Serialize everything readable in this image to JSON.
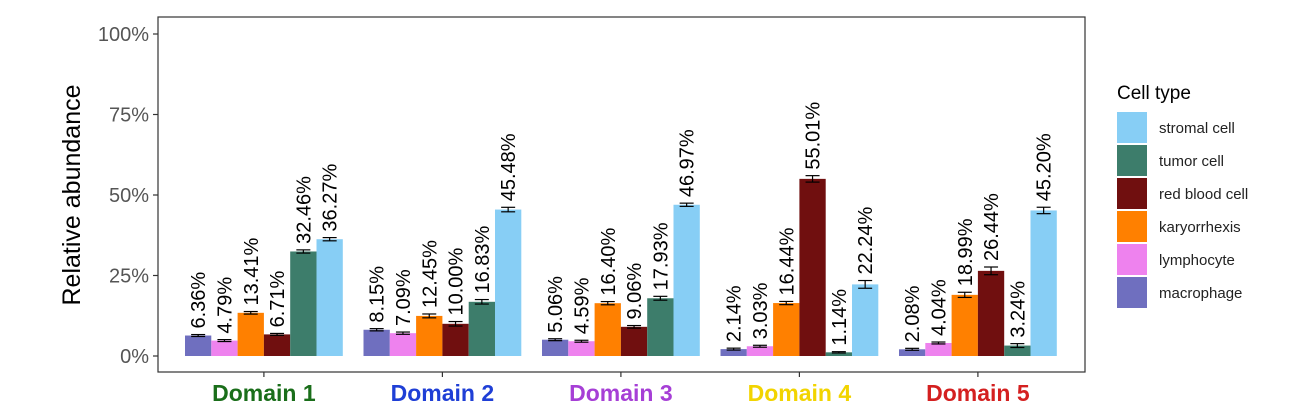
{
  "chart_data": {
    "type": "bar",
    "ylabel": "Relative abundance",
    "ylim": [
      0,
      100
    ],
    "yticks": [
      "0%",
      "25%",
      "50%",
      "75%",
      "100%"
    ],
    "y_tick_values": [
      0,
      25,
      50,
      75,
      100
    ],
    "categories": [
      "Domain 1",
      "Domain 2",
      "Domain 3",
      "Domain 4",
      "Domain 5"
    ],
    "category_colors": [
      "#1a6e1a",
      "#1f3fd6",
      "#a63fd6",
      "#f2d400",
      "#d42020"
    ],
    "legend": {
      "title": "Cell type",
      "placement": "right",
      "entries": [
        "stromal cell",
        "tumor cell",
        "red blood cell",
        "karyorrhexis",
        "lymphocyte",
        "macrophage"
      ]
    },
    "series": [
      {
        "name": "macrophage",
        "color": "#6f6fbf",
        "values": [
          6.36,
          8.15,
          5.06,
          2.14,
          2.08
        ],
        "errors": [
          0.3,
          0.35,
          0.3,
          0.3,
          0.3
        ],
        "labels": [
          "6.36%",
          "8.15%",
          "5.06%",
          "2.14%",
          "2.08%"
        ]
      },
      {
        "name": "lymphocyte",
        "color": "#ee82ee",
        "values": [
          4.79,
          7.09,
          4.59,
          3.03,
          4.04
        ],
        "errors": [
          0.3,
          0.35,
          0.3,
          0.3,
          0.3
        ],
        "labels": [
          "4.79%",
          "7.09%",
          "4.59%",
          "3.03%",
          "4.04%"
        ]
      },
      {
        "name": "karyorrhexis",
        "color": "#ff8000",
        "values": [
          13.41,
          12.45,
          16.4,
          16.44,
          18.99
        ],
        "errors": [
          0.4,
          0.6,
          0.5,
          0.5,
          0.8
        ],
        "labels": [
          "13.41%",
          "12.45%",
          "16.40%",
          "16.44%",
          "18.99%"
        ]
      },
      {
        "name": "red blood cell",
        "color": "#700f0f",
        "values": [
          6.71,
          10.0,
          9.06,
          55.01,
          26.44
        ],
        "errors": [
          0.3,
          0.7,
          0.4,
          1.0,
          1.2
        ],
        "labels": [
          "6.71%",
          "10.00%",
          "9.06%",
          "55.01%",
          "26.44%"
        ]
      },
      {
        "name": "tumor cell",
        "color": "#3d7d6b",
        "values": [
          32.46,
          16.83,
          17.93,
          1.14,
          3.24
        ],
        "errors": [
          0.5,
          0.7,
          0.6,
          0.2,
          0.6
        ],
        "labels": [
          "32.46%",
          "16.83%",
          "17.93%",
          "1.14%",
          "3.24%"
        ]
      },
      {
        "name": "stromal cell",
        "color": "#87cef5",
        "values": [
          36.27,
          45.48,
          46.97,
          22.24,
          45.2
        ],
        "errors": [
          0.5,
          0.7,
          0.5,
          1.2,
          1.0
        ],
        "labels": [
          "36.27%",
          "45.48%",
          "46.97%",
          "22.24%",
          "45.20%"
        ]
      }
    ]
  }
}
